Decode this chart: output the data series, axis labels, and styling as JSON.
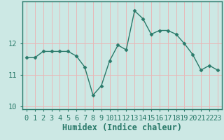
{
  "title": "",
  "xlabel": "Humidex (Indice chaleur)",
  "ylabel": "",
  "x_values": [
    0,
    1,
    2,
    3,
    4,
    5,
    6,
    7,
    8,
    9,
    10,
    11,
    12,
    13,
    14,
    15,
    16,
    17,
    18,
    19,
    20,
    21,
    22,
    23
  ],
  "y_values": [
    11.55,
    11.55,
    11.75,
    11.75,
    11.75,
    11.75,
    11.6,
    11.25,
    10.35,
    10.65,
    11.45,
    11.95,
    11.8,
    13.05,
    12.8,
    12.3,
    12.42,
    12.42,
    12.3,
    12.0,
    11.65,
    11.15,
    11.3,
    11.15
  ],
  "ylim": [
    9.9,
    13.35
  ],
  "yticks": [
    10,
    11,
    12
  ],
  "xlim": [
    -0.5,
    23.5
  ],
  "line_color": "#2a7a6a",
  "marker": "D",
  "marker_size": 2.5,
  "background_color": "#cce8e4",
  "grid_color": "#e8b8b8",
  "tick_label_fontsize": 7.5,
  "axis_label_fontsize": 8.5
}
